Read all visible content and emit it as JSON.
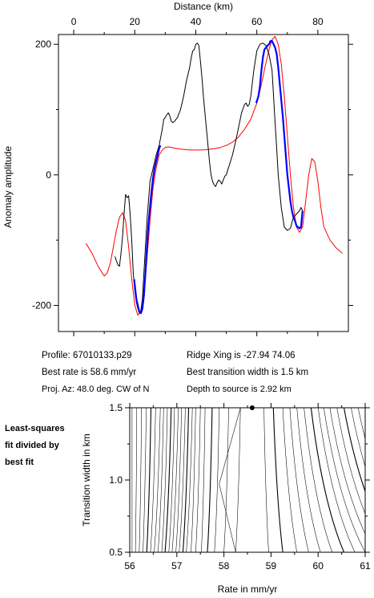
{
  "info": {
    "profile": "Profile: 67010133.p29",
    "best_rate": "Best rate is 58.6 mm/yr",
    "proj_az": "Proj. Az: 48.0 deg. CW of N",
    "ridge_xing": "Ridge Xing is -27.94 74.06",
    "best_transition": "Best transition width is 1.5 km",
    "depth": "Depth to source is   2.92 km"
  },
  "side_note": [
    "Least-squares",
    "fit divided by",
    "best fit"
  ],
  "colors": {
    "observed": "#000000",
    "model": "#ff0000",
    "fitted": "#0000ff"
  },
  "chart_data": [
    {
      "type": "line",
      "xlabel": "Distance (km)",
      "ylabel": "Anomaly amplitude",
      "xlim": [
        -5,
        90
      ],
      "ylim": [
        -240,
        215
      ],
      "xticks": [
        0,
        20,
        40,
        60,
        80
      ],
      "yticks": [
        -200,
        0,
        200
      ],
      "xtick_labels": [
        "0",
        "20",
        "40",
        "60",
        "80"
      ],
      "ytick_labels": [
        "-200",
        "0",
        "200"
      ],
      "x_axis_position": "top",
      "series": [
        {
          "key": "observed",
          "x": [
            13.5,
            14.0,
            14.5,
            15.0,
            15.5,
            16.0,
            16.5,
            17.0,
            17.5,
            18.0,
            18.5,
            19.0,
            19.5,
            20.0,
            20.5,
            21.0,
            21.5,
            22.0,
            22.5,
            23.0,
            23.5,
            24.0,
            24.5,
            25.0,
            26.0,
            27.0,
            28.0,
            29.0,
            29.5,
            30.0,
            30.5,
            31.0,
            31.5,
            32.0,
            32.5,
            33.0,
            34.0,
            35.0,
            36.0,
            37.0,
            38.0,
            38.5,
            39.0,
            39.5,
            40.0,
            40.5,
            41.0,
            41.5,
            42.0,
            42.5,
            43.0,
            43.5,
            44.0,
            44.5,
            45.0,
            45.5,
            46.0,
            46.5,
            47.0,
            47.5,
            48.0,
            48.5,
            49.0,
            49.5,
            50.0,
            50.5,
            51.0,
            52.0,
            53.0,
            54.0,
            55.0,
            56.0,
            56.5,
            57.0,
            57.5,
            58.0,
            58.5,
            59.0,
            60.0,
            61.0,
            62.0,
            63.0,
            64.0,
            65.0,
            65.5,
            66.0,
            66.5,
            67.0,
            68.0,
            69.0,
            70.0,
            71.0,
            72.0,
            73.0,
            74.0,
            74.5,
            75.0
          ],
          "y": [
            -125,
            -132,
            -138,
            -140,
            -120,
            -95,
            -60,
            -30,
            -35,
            -32,
            -60,
            -100,
            -150,
            -178,
            -195,
            -205,
            -212,
            -208,
            -190,
            -150,
            -110,
            -70,
            -40,
            -10,
            10,
            30,
            45,
            70,
            85,
            88,
            92,
            95,
            90,
            82,
            80,
            82,
            88,
            100,
            120,
            145,
            165,
            180,
            190,
            192,
            200,
            202,
            198,
            175,
            150,
            120,
            95,
            70,
            45,
            20,
            0,
            -10,
            -15,
            -18,
            -12,
            -8,
            -10,
            -14,
            -8,
            -2,
            0,
            8,
            15,
            30,
            50,
            72,
            95,
            108,
            110,
            105,
            108,
            120,
            140,
            160,
            190,
            200,
            202,
            198,
            185,
            160,
            120,
            80,
            40,
            0,
            -50,
            -80,
            -85,
            -82,
            -65,
            -60,
            -55,
            -50,
            -55
          ]
        },
        {
          "key": "model",
          "x": [
            4.0,
            6.0,
            8.0,
            10.0,
            11.0,
            12.0,
            13.0,
            14.0,
            15.0,
            16.0,
            17.0,
            18.0,
            19.0,
            20.0,
            21.0,
            22.0,
            23.0,
            24.0,
            25.0,
            26.0,
            27.0,
            28.0,
            29.0,
            30.0,
            31.0,
            32.0,
            33.0,
            34.0,
            36.0,
            38.0,
            40.0,
            42.0,
            44.0,
            46.0,
            48.0,
            50.0,
            52.0,
            54.0,
            56.0,
            58.0,
            60.0,
            61.0,
            62.0,
            63.0,
            64.0,
            65.0,
            66.0,
            67.0,
            68.0,
            69.0,
            70.0,
            71.0,
            72.0,
            73.0,
            74.0,
            75.0,
            76.0,
            77.0,
            78.0,
            79.0,
            80.0,
            81.0,
            82.0,
            84.0,
            86.0,
            88.0
          ],
          "y": [
            -105,
            -120,
            -140,
            -155,
            -150,
            -135,
            -110,
            -85,
            -65,
            -58,
            -70,
            -110,
            -160,
            -200,
            -215,
            -210,
            -180,
            -130,
            -70,
            -20,
            10,
            30,
            38,
            42,
            43,
            42,
            41,
            40,
            39,
            38,
            38,
            38,
            39,
            40,
            42,
            45,
            50,
            58,
            70,
            85,
            110,
            128,
            150,
            172,
            192,
            207,
            212,
            200,
            170,
            120,
            60,
            0,
            -50,
            -80,
            -88,
            -80,
            -40,
            0,
            25,
            20,
            -10,
            -50,
            -80,
            -100,
            -112,
            -120
          ]
        },
        {
          "key": "fitted",
          "x": [
            19.8,
            20.5,
            21.0,
            21.5,
            22.0,
            22.5,
            23.0,
            23.5,
            24.0,
            24.5,
            25.0,
            25.5,
            26.0,
            26.5,
            27.0,
            27.5,
            28.0,
            28.4,
            59.8,
            60.5,
            61.0,
            61.5,
            62.0,
            62.5,
            63.0,
            63.5,
            64.0,
            64.5,
            65.0,
            65.5,
            66.0,
            66.5,
            67.0,
            67.5,
            68.0,
            68.5,
            69.0,
            69.5,
            70.0,
            70.5,
            71.0,
            71.5,
            72.0,
            72.5,
            73.0,
            73.5,
            74.0,
            74.5,
            75.0
          ],
          "y": [
            -160,
            -190,
            -200,
            -210,
            -212,
            -205,
            -185,
            -150,
            -110,
            -75,
            -50,
            -25,
            -5,
            10,
            20,
            30,
            40,
            45,
            110,
            120,
            135,
            160,
            180,
            192,
            195,
            198,
            200,
            205,
            205,
            200,
            195,
            185,
            165,
            140,
            115,
            90,
            60,
            30,
            0,
            -20,
            -40,
            -55,
            -65,
            -70,
            -78,
            -80,
            -82,
            -80,
            -55
          ]
        }
      ]
    },
    {
      "type": "contour",
      "xlabel": "Rate in mm/yr",
      "ylabel": "Transition width in km",
      "xlim": [
        56,
        61
      ],
      "ylim": [
        0.5,
        1.5
      ],
      "xticks": [
        56,
        57,
        58,
        59,
        60,
        61
      ],
      "yticks": [
        0.5,
        1.0,
        1.5
      ],
      "xtick_labels": [
        "56",
        "57",
        "58",
        "59",
        "60",
        "61"
      ],
      "ytick_labels": [
        "0.5",
        "1.0",
        "1.5"
      ],
      "best_fit_point": {
        "x": 58.6,
        "y": 1.5
      },
      "contour_lines_x_at_top": [
        56.05,
        56.15,
        56.25,
        56.35,
        56.45,
        56.55,
        56.65,
        56.72,
        56.8,
        56.88,
        56.95,
        57.03,
        57.1,
        57.18,
        57.25,
        57.33,
        57.4,
        57.5,
        57.6,
        57.75,
        57.9,
        58.1,
        58.35,
        58.85,
        59.05,
        59.25,
        59.4,
        59.55,
        59.7,
        59.85,
        60.0,
        60.12,
        60.25,
        60.4,
        60.55,
        60.7,
        60.85
      ],
      "contour_lines_x_at_bottom": [
        56.05,
        56.12,
        56.2,
        56.28,
        56.36,
        56.44,
        56.52,
        56.6,
        56.68,
        56.75,
        56.83,
        56.9,
        56.98,
        57.05,
        57.13,
        57.2,
        57.3,
        57.4,
        57.52,
        57.65,
        57.8,
        58.0,
        58.25,
        58.95,
        59.25,
        59.55,
        59.8,
        60.05,
        60.3,
        60.55,
        60.78,
        61.0,
        61.2,
        61.4,
        61.6,
        61.8,
        62.0
      ]
    }
  ]
}
